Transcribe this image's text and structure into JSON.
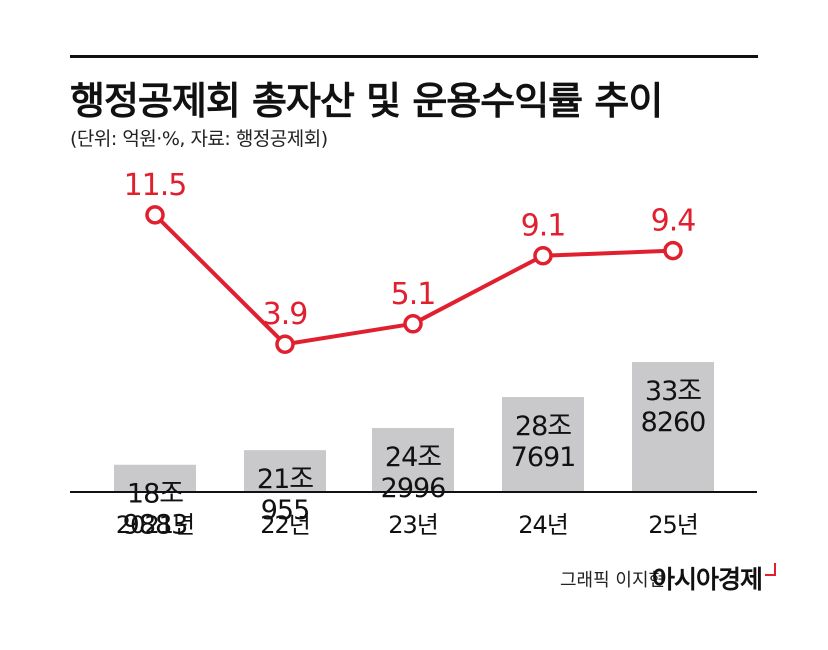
{
  "header": {
    "title": "행정공제회 총자산 및 운용수익률 추이",
    "subtitle": "(단위: 억원·%, 자료: 행정공제회)"
  },
  "footer": {
    "credit": "그래픽 이지현",
    "brand": "아시아경제"
  },
  "colors": {
    "bar": "#c9c9cb",
    "line": "#e0202e",
    "axis": "#111111",
    "text": "#111111"
  },
  "chart_data": {
    "type": "bar+line",
    "categories": [
      "2021년",
      "22년",
      "23년",
      "24년",
      "25년"
    ],
    "series": [
      {
        "kind": "bar",
        "values": [
          189883,
          210955,
          242996,
          287691,
          338260
        ],
        "labels": [
          [
            "18조",
            "9883"
          ],
          [
            "21조",
            "955"
          ],
          [
            "24조",
            "2996"
          ],
          [
            "28조",
            "7691"
          ],
          [
            "33조",
            "8260"
          ]
        ]
      },
      {
        "kind": "line",
        "values": [
          11.5,
          3.9,
          5.1,
          9.1,
          9.4
        ],
        "labels": [
          "11.5",
          "3.9",
          "5.1",
          "9.1",
          "9.4"
        ]
      }
    ],
    "grid": false,
    "legend": "none"
  }
}
